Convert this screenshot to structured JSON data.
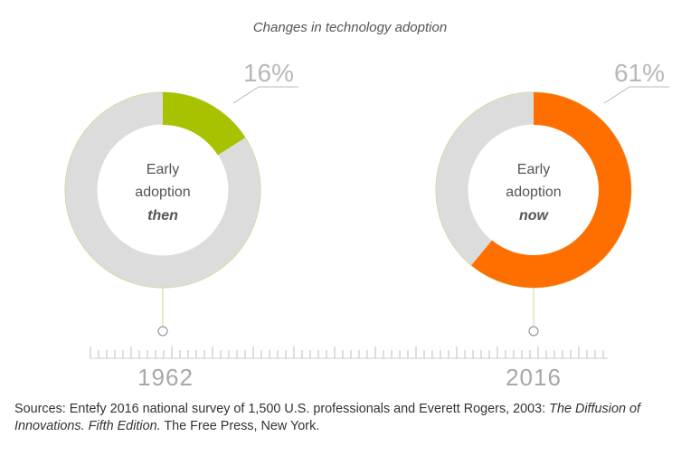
{
  "title": "Changes in technology adoption",
  "colors": {
    "track": "#dcdcdc",
    "then": "#a9c200",
    "now": "#ff6f00",
    "outline": "#d2d49a",
    "label": "#b8b8b8"
  },
  "chart_data": [
    {
      "type": "pie",
      "year": "1962",
      "value": 16,
      "value_label": "16%",
      "center_text": [
        "Early",
        "adoption",
        "then"
      ]
    },
    {
      "type": "pie",
      "year": "2016",
      "value": 61,
      "value_label": "61%",
      "center_text": [
        "Early",
        "adoption",
        "now"
      ]
    }
  ],
  "source": {
    "part1": "Sources: Entefy 2016 national survey of 1,500 U.S. professionals and Everett Rogers, 2003: ",
    "italic": "The Diffusion of Innovations. Fifth Edition.",
    "part2": " The Free Press, New York."
  }
}
